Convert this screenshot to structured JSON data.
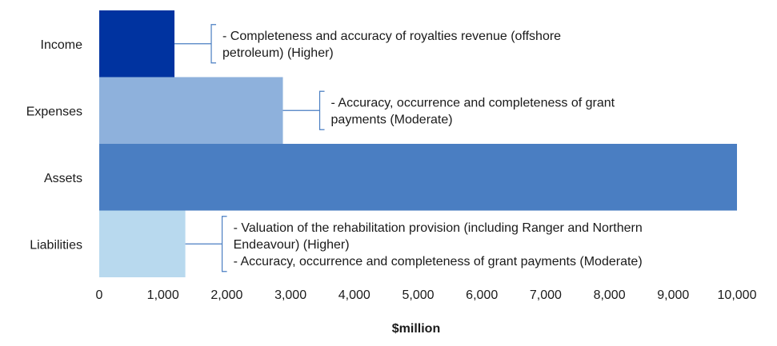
{
  "chart_data": {
    "type": "bar",
    "orientation": "horizontal",
    "categories": [
      "Income",
      "Expenses",
      "Assets",
      "Liabilities"
    ],
    "values": [
      1180,
      2880,
      10000,
      1350
    ],
    "colors": [
      "#0033a0",
      "#8eb1dc",
      "#4a7ec2",
      "#b8d9ee"
    ],
    "xlabel": "$million",
    "ylabel": "",
    "xlim": [
      0,
      10000
    ],
    "xticks": [
      "0",
      "1,000",
      "2,000",
      "3,000",
      "4,000",
      "5,000",
      "6,000",
      "7,000",
      "8,000",
      "9,000",
      "10,000"
    ],
    "grid": false,
    "legend": "none",
    "annotations": [
      {
        "category": "Income",
        "lines": [
          "- Completeness and accuracy of royalties revenue (offshore",
          "petroleum) (Higher)"
        ]
      },
      {
        "category": "Expenses",
        "lines": [
          "- Accuracy, occurrence and completeness of grant",
          "payments (Moderate)"
        ]
      },
      {
        "category": "Liabilities",
        "lines": [
          "- Valuation of the rehabilitation provision (including Ranger and Northern",
          "Endeavour) (Higher)",
          "- Accuracy, occurrence and completeness of grant payments (Moderate)"
        ]
      }
    ],
    "annotation_bracket_color": "#4a7ec2"
  }
}
